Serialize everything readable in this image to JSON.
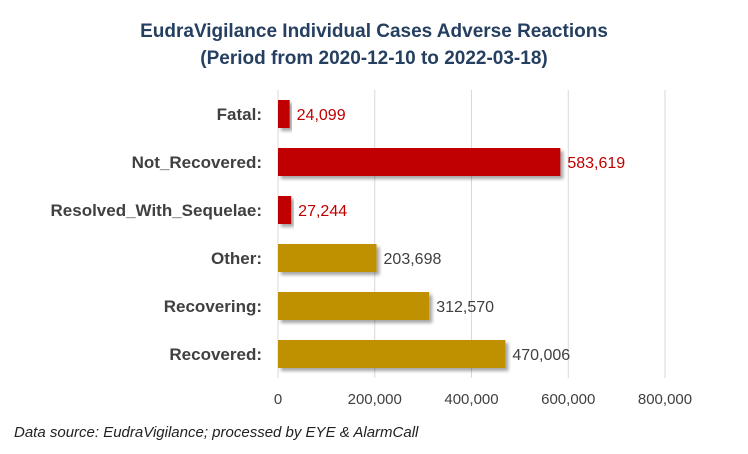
{
  "chart_data": {
    "type": "bar",
    "orientation": "horizontal",
    "title": "EudraVigilance Individual Cases Adverse Reactions",
    "subtitle": "(Period from 2020-12-10 to 2022-03-18)",
    "categories": [
      "Fatal:",
      "Not_Recovered:",
      "Resolved_With_Sequelae:",
      "Other:",
      "Recovering:",
      "Recovered:"
    ],
    "values": [
      24099,
      583619,
      27244,
      203698,
      312570,
      470006
    ],
    "value_labels": [
      "24,099",
      "583,619",
      "27,244",
      "203,698",
      "312,570",
      "470,006"
    ],
    "bar_colors": [
      "#c00000",
      "#c00000",
      "#c00000",
      "#bf9000",
      "#bf9000",
      "#bf9000"
    ],
    "label_colors": [
      "#c00000",
      "#c00000",
      "#c00000",
      "#404040",
      "#404040",
      "#404040"
    ],
    "x_ticks": [
      0,
      200000,
      400000,
      600000,
      800000
    ],
    "x_tick_labels": [
      "0",
      "200,000",
      "400,000",
      "600,000",
      "800,000"
    ],
    "xlim": [
      0,
      800000
    ],
    "grid": true,
    "legend": "none",
    "xlabel": "",
    "ylabel": ""
  },
  "footer": {
    "source": "Data source: EudraVigilance; processed by EYE & AlarmCall"
  }
}
